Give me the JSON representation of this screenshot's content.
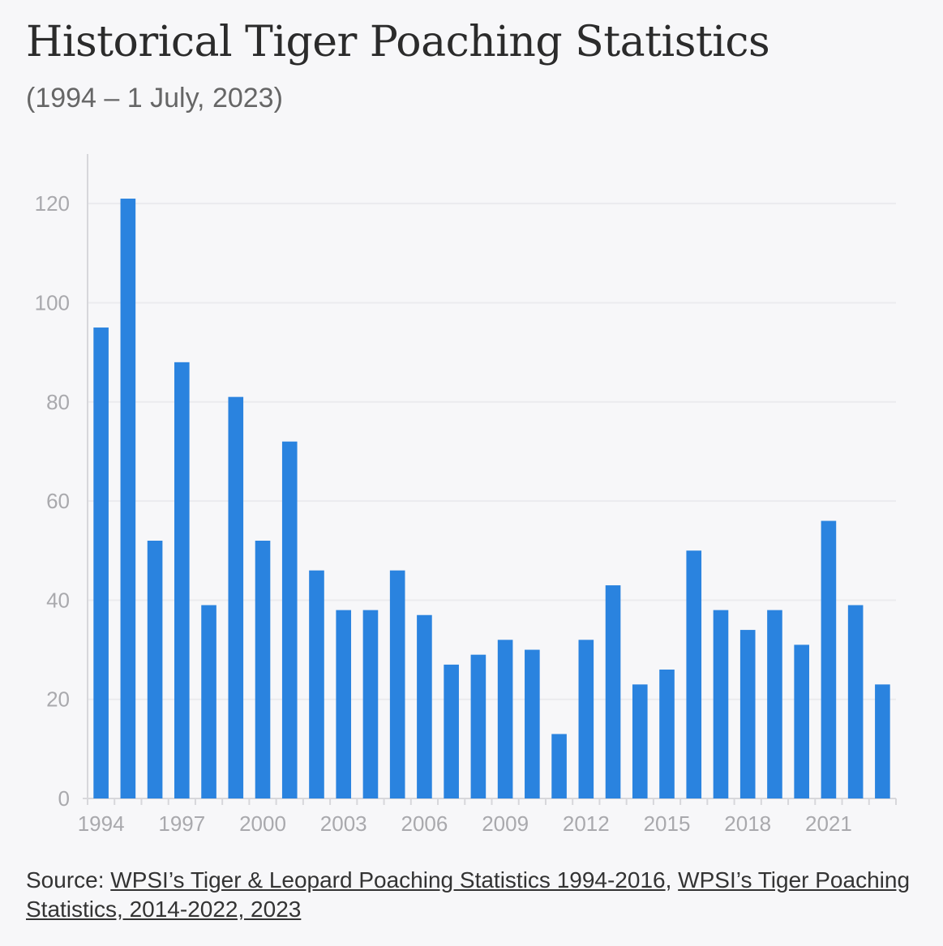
{
  "title": "Historical Tiger Poaching Statistics",
  "subtitle": "(1994 – 1 July, 2023)",
  "source": {
    "prefix": "Source: ",
    "link1": "WPSI’s Tiger & Leopard Poaching Statistics 1994-2016",
    "sep1": ", ",
    "link2": "WPSI’s Tiger Poaching Statistics, 2014-2022, 2023"
  },
  "colors": {
    "bar": "#2a83df",
    "grid": "#ebebee",
    "axis": "#d7d7db"
  },
  "chart_data": {
    "type": "bar",
    "title": "Historical Tiger Poaching Statistics",
    "subtitle": "(1994 – 1 July, 2023)",
    "categories": [
      "1994",
      "1995",
      "1996",
      "1997",
      "1998",
      "1999",
      "2000",
      "2001",
      "2002",
      "2003",
      "2004",
      "2005",
      "2006",
      "2007",
      "2008",
      "2009",
      "2010",
      "2011",
      "2012",
      "2013",
      "2014",
      "2015",
      "2016",
      "2017",
      "2018",
      "2019",
      "2020",
      "2021",
      "2022",
      "2023"
    ],
    "values": [
      95,
      121,
      52,
      88,
      39,
      81,
      52,
      72,
      46,
      38,
      38,
      46,
      37,
      27,
      29,
      32,
      30,
      13,
      32,
      43,
      23,
      26,
      50,
      38,
      34,
      38,
      31,
      56,
      39,
      23
    ],
    "xtick_labels": [
      "1994",
      "1997",
      "2000",
      "2003",
      "2006",
      "2009",
      "2012",
      "2015",
      "2018",
      "2021"
    ],
    "yticks": [
      0,
      20,
      40,
      60,
      80,
      100,
      120
    ],
    "ylim": [
      0,
      130
    ],
    "xlabel": "",
    "ylabel": "",
    "grid": true
  }
}
